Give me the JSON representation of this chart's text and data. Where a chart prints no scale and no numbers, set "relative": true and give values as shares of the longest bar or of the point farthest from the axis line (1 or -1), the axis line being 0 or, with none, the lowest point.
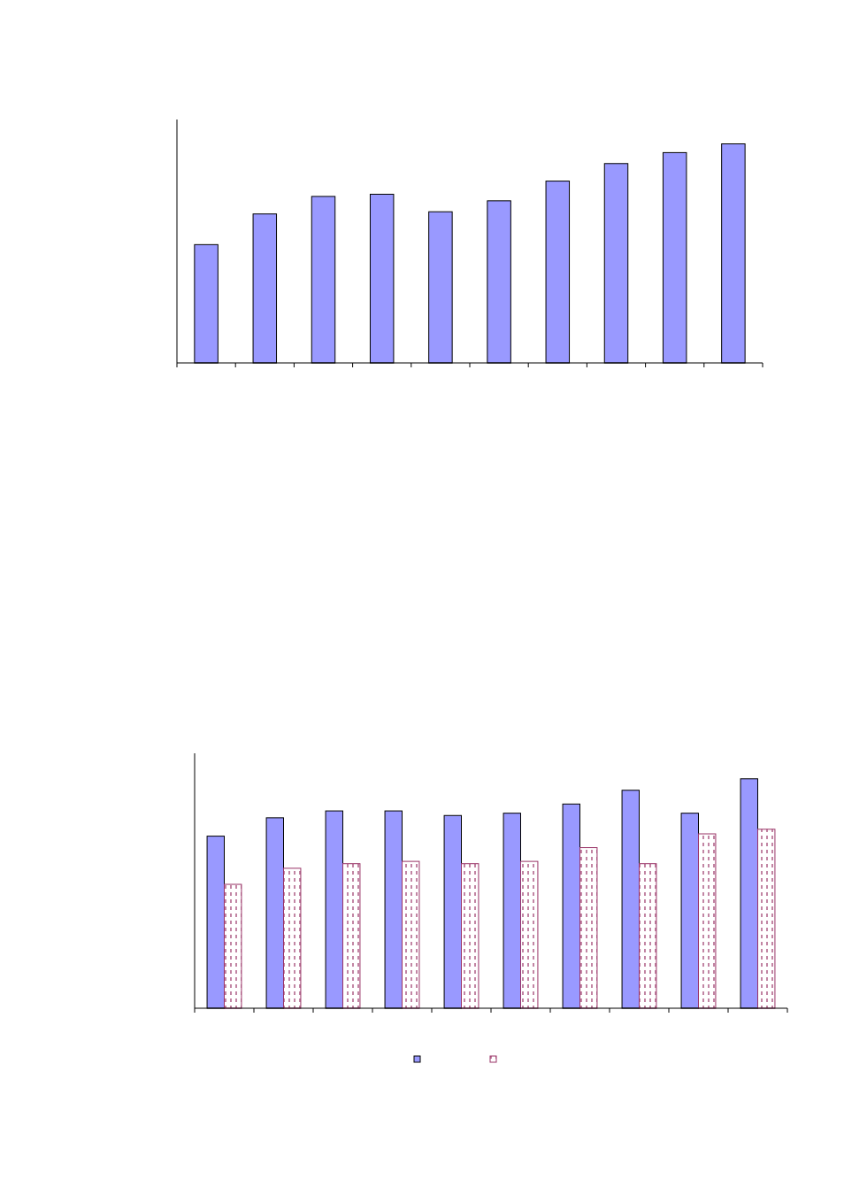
{
  "chart_data": [
    {
      "type": "bar",
      "relative": true,
      "categories": [
        null,
        null,
        null,
        null,
        null,
        null,
        null,
        null,
        null,
        null
      ],
      "series": [
        {
          "color": "#9999ff",
          "values": [
            0.54,
            0.68,
            0.76,
            0.77,
            0.69,
            0.74,
            0.83,
            0.91,
            0.96,
            1
          ]
        }
      ]
    },
    {
      "type": "bar",
      "relative": true,
      "categories": [
        null,
        null,
        null,
        null,
        null,
        null,
        null,
        null,
        null,
        null
      ],
      "series": [
        {
          "color": "#9999ff",
          "values": [
            0.75,
            0.83,
            0.86,
            0.86,
            0.84,
            0.85,
            0.89,
            0.95,
            0.85,
            1
          ]
        },
        {
          "color": "#993366",
          "values": [
            0.54,
            0.61,
            0.63,
            0.64,
            0.63,
            0.64,
            0.7,
            0.63,
            0.76,
            0.78
          ]
        }
      ]
    }
  ]
}
